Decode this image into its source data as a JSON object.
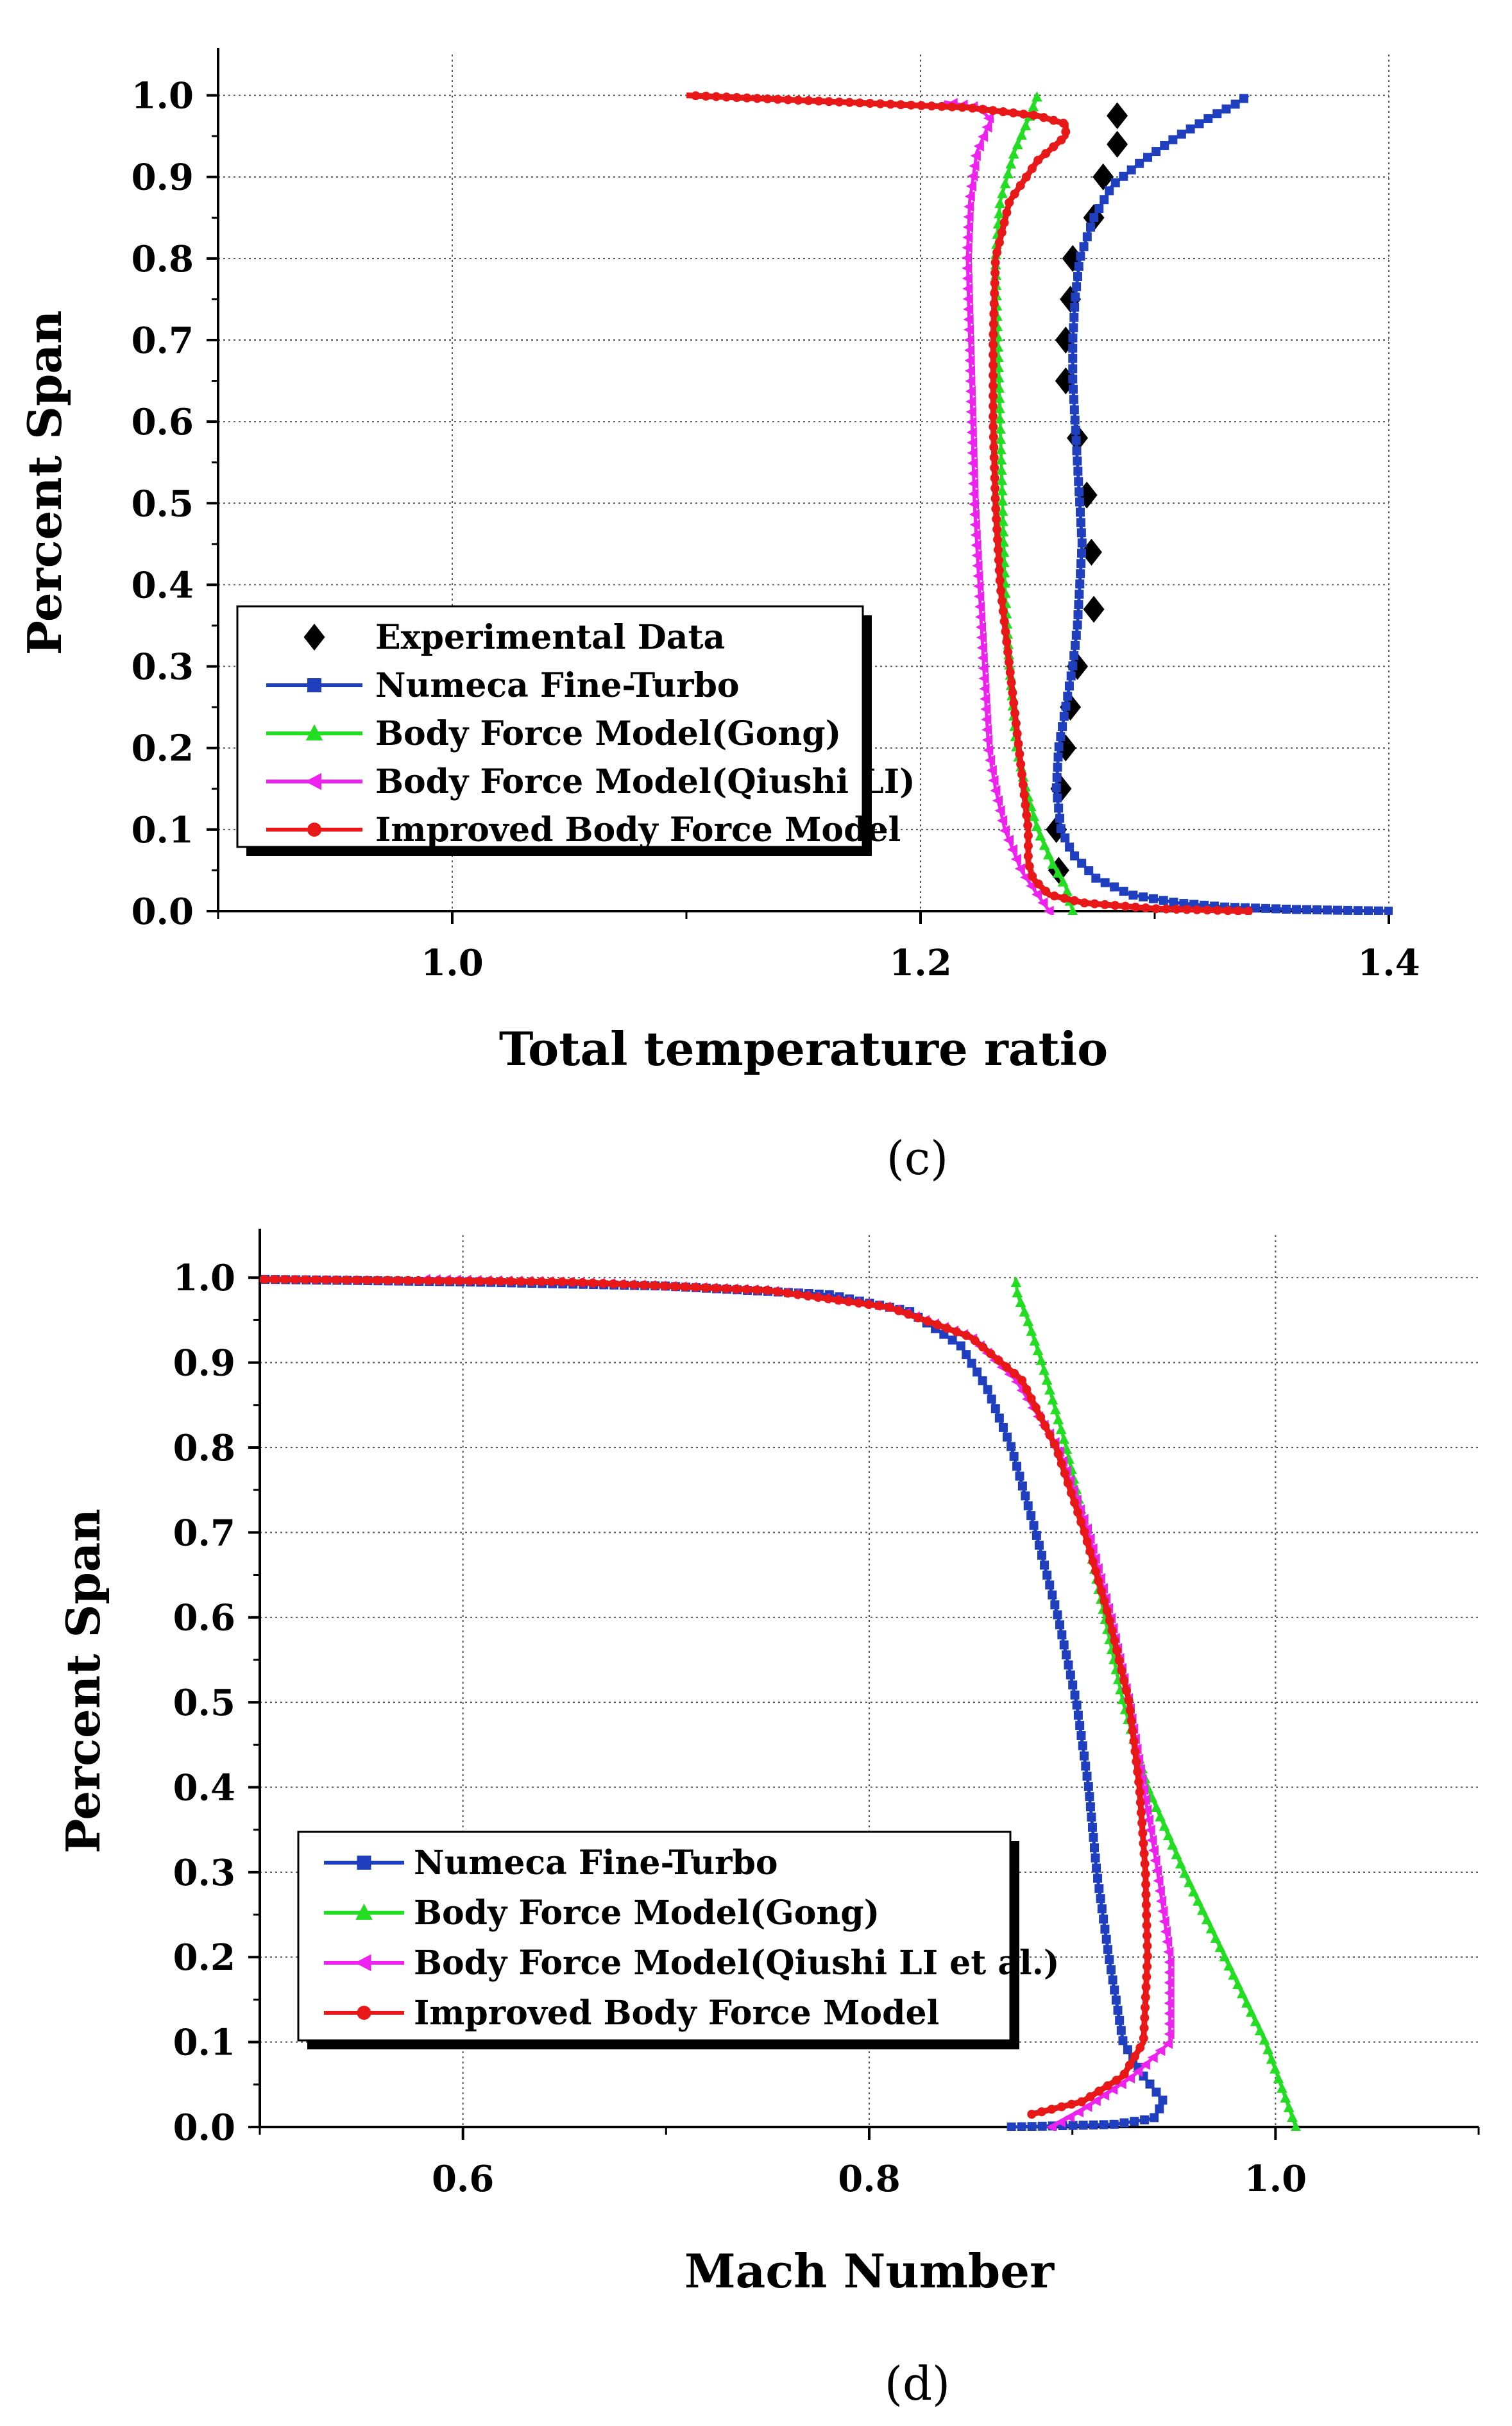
{
  "chart_data": [
    {
      "id": "c",
      "type": "line",
      "panel_label": "(c)",
      "xlabel": "Total temperature ratio",
      "ylabel": "Percent Span",
      "xlim": [
        0.9,
        1.4
      ],
      "ylim": [
        0.0,
        1.05
      ],
      "xticks": [
        1.0,
        1.2,
        1.4
      ],
      "xtick_labels": [
        "1.0",
        "1.2",
        "1.4"
      ],
      "yticks": [
        0.0,
        0.1,
        0.2,
        0.3,
        0.4,
        0.5,
        0.6,
        0.7,
        0.8,
        0.9,
        1.0
      ],
      "ytick_labels": [
        "0.0",
        "0.1",
        "0.2",
        "0.3",
        "0.4",
        "0.5",
        "0.6",
        "0.7",
        "0.8",
        "0.9",
        "1.0"
      ],
      "grid": true,
      "legend_position": "lower-left",
      "series": [
        {
          "name": "Experimental Data",
          "color": "#000000",
          "marker": "diamond",
          "line": false,
          "points": [
            [
              1.259,
              0.05
            ],
            [
              1.258,
              0.1
            ],
            [
              1.26,
              0.15
            ],
            [
              1.262,
              0.2
            ],
            [
              1.264,
              0.25
            ],
            [
              1.267,
              0.3
            ],
            [
              1.274,
              0.37
            ],
            [
              1.273,
              0.44
            ],
            [
              1.271,
              0.51
            ],
            [
              1.267,
              0.58
            ],
            [
              1.262,
              0.65
            ],
            [
              1.262,
              0.7
            ],
            [
              1.264,
              0.75
            ],
            [
              1.265,
              0.8
            ],
            [
              1.274,
              0.85
            ],
            [
              1.278,
              0.9
            ],
            [
              1.284,
              0.94
            ],
            [
              1.284,
              0.975
            ]
          ]
        },
        {
          "name": "Numeca Fine-Turbo",
          "color": "#1f3fbf",
          "marker": "square",
          "line": true,
          "points": [
            [
              1.4,
              0.0
            ],
            [
              1.36,
              0.002
            ],
            [
              1.33,
              0.005
            ],
            [
              1.31,
              0.01
            ],
            [
              1.29,
              0.02
            ],
            [
              1.275,
              0.04
            ],
            [
              1.265,
              0.07
            ],
            [
              1.26,
              0.1
            ],
            [
              1.258,
              0.15
            ],
            [
              1.259,
              0.2
            ],
            [
              1.262,
              0.25
            ],
            [
              1.265,
              0.3
            ],
            [
              1.267,
              0.35
            ],
            [
              1.268,
              0.4
            ],
            [
              1.269,
              0.45
            ],
            [
              1.268,
              0.5
            ],
            [
              1.267,
              0.55
            ],
            [
              1.266,
              0.6
            ],
            [
              1.265,
              0.65
            ],
            [
              1.265,
              0.7
            ],
            [
              1.266,
              0.75
            ],
            [
              1.268,
              0.8
            ],
            [
              1.274,
              0.85
            ],
            [
              1.282,
              0.89
            ],
            [
              1.295,
              0.92
            ],
            [
              1.31,
              0.95
            ],
            [
              1.325,
              0.975
            ],
            [
              1.335,
              0.99
            ],
            [
              1.34,
              1.0
            ]
          ]
        },
        {
          "name": "Body Force Model(Gong)",
          "color": "#22dd22",
          "marker": "triangle",
          "line": true,
          "points": [
            [
              1.265,
              0.0
            ],
            [
              1.262,
              0.03
            ],
            [
              1.256,
              0.06
            ],
            [
              1.25,
              0.1
            ],
            [
              1.245,
              0.15
            ],
            [
              1.241,
              0.2
            ],
            [
              1.238,
              0.3
            ],
            [
              1.236,
              0.4
            ],
            [
              1.235,
              0.5
            ],
            [
              1.234,
              0.6
            ],
            [
              1.233,
              0.7
            ],
            [
              1.232,
              0.8
            ],
            [
              1.234,
              0.87
            ],
            [
              1.24,
              0.93
            ],
            [
              1.246,
              0.97
            ],
            [
              1.25,
              1.0
            ]
          ]
        },
        {
          "name": "Body Force Model(Qiushi LI)",
          "color": "#ee22ee",
          "marker": "triangle-left",
          "line": true,
          "points": [
            [
              1.255,
              0.0
            ],
            [
              1.25,
              0.02
            ],
            [
              1.243,
              0.05
            ],
            [
              1.236,
              0.1
            ],
            [
              1.232,
              0.15
            ],
            [
              1.229,
              0.2
            ],
            [
              1.227,
              0.3
            ],
            [
              1.225,
              0.4
            ],
            [
              1.223,
              0.5
            ],
            [
              1.222,
              0.6
            ],
            [
              1.221,
              0.7
            ],
            [
              1.22,
              0.8
            ],
            [
              1.221,
              0.87
            ],
            [
              1.224,
              0.93
            ],
            [
              1.23,
              0.97
            ],
            [
              1.225,
              0.985
            ],
            [
              1.21,
              0.992
            ]
          ]
        },
        {
          "name": "Improved Body Force Model",
          "color": "#e81818",
          "marker": "circle",
          "line": true,
          "points": [
            [
              1.34,
              0.0
            ],
            [
              1.3,
              0.003
            ],
            [
              1.27,
              0.01
            ],
            [
              1.255,
              0.02
            ],
            [
              1.248,
              0.04
            ],
            [
              1.246,
              0.06
            ],
            [
              1.246,
              0.1
            ],
            [
              1.244,
              0.15
            ],
            [
              1.242,
              0.2
            ],
            [
              1.238,
              0.3
            ],
            [
              1.234,
              0.4
            ],
            [
              1.232,
              0.5
            ],
            [
              1.231,
              0.6
            ],
            [
              1.231,
              0.7
            ],
            [
              1.232,
              0.8
            ],
            [
              1.238,
              0.87
            ],
            [
              1.25,
              0.92
            ],
            [
              1.262,
              0.95
            ],
            [
              1.262,
              0.965
            ],
            [
              1.25,
              0.975
            ],
            [
              1.22,
              0.985
            ],
            [
              1.18,
              0.99
            ],
            [
              1.14,
              0.995
            ],
            [
              1.1,
              1.0
            ]
          ]
        }
      ]
    },
    {
      "id": "d",
      "type": "line",
      "panel_label": "(d)",
      "xlabel": "Mach Number",
      "ylabel": "Percent Span",
      "xlim": [
        0.5,
        1.1
      ],
      "ylim": [
        0.0,
        1.05
      ],
      "xticks": [
        0.6,
        0.8,
        1.0
      ],
      "xtick_labels": [
        "0.6",
        "0.8",
        "1.0"
      ],
      "yticks": [
        0.0,
        0.1,
        0.2,
        0.3,
        0.4,
        0.5,
        0.6,
        0.7,
        0.8,
        0.9,
        1.0
      ],
      "ytick_labels": [
        "0.0",
        "0.1",
        "0.2",
        "0.3",
        "0.4",
        "0.5",
        "0.6",
        "0.7",
        "0.8",
        "0.9",
        "1.0"
      ],
      "grid": true,
      "legend_position": "lower-left",
      "series": [
        {
          "name": "Numeca Fine-Turbo",
          "color": "#1f3fbf",
          "marker": "square",
          "line": true,
          "points": [
            [
              0.87,
              0.0
            ],
            [
              0.92,
              0.003
            ],
            [
              0.94,
              0.01
            ],
            [
              0.945,
              0.03
            ],
            [
              0.935,
              0.06
            ],
            [
              0.925,
              0.1
            ],
            [
              0.918,
              0.2
            ],
            [
              0.912,
              0.3
            ],
            [
              0.908,
              0.4
            ],
            [
              0.902,
              0.5
            ],
            [
              0.893,
              0.6
            ],
            [
              0.882,
              0.7
            ],
            [
              0.87,
              0.8
            ],
            [
              0.858,
              0.87
            ],
            [
              0.845,
              0.92
            ],
            [
              0.82,
              0.96
            ],
            [
              0.78,
              0.98
            ],
            [
              0.7,
              0.99
            ],
            [
              0.6,
              0.995
            ],
            [
              0.5,
              0.998
            ]
          ]
        },
        {
          "name": "Body Force Model(Gong)",
          "color": "#22dd22",
          "marker": "triangle",
          "line": true,
          "points": [
            [
              1.01,
              0.0
            ],
            [
              0.995,
              0.1
            ],
            [
              0.975,
              0.2
            ],
            [
              0.955,
              0.3
            ],
            [
              0.937,
              0.4
            ],
            [
              0.925,
              0.5
            ],
            [
              0.916,
              0.6
            ],
            [
              0.907,
              0.7
            ],
            [
              0.897,
              0.8
            ],
            [
              0.885,
              0.9
            ],
            [
              0.878,
              0.95
            ],
            [
              0.873,
              0.98
            ],
            [
              0.872,
              1.0
            ]
          ]
        },
        {
          "name": "Body Force Model(Qiushi LI et al.)",
          "color": "#ee22ee",
          "marker": "triangle-left",
          "line": true,
          "points": [
            [
              0.89,
              0.0
            ],
            [
              0.905,
              0.02
            ],
            [
              0.93,
              0.06
            ],
            [
              0.948,
              0.1
            ],
            [
              0.948,
              0.2
            ],
            [
              0.942,
              0.3
            ],
            [
              0.935,
              0.4
            ],
            [
              0.928,
              0.5
            ],
            [
              0.919,
              0.6
            ],
            [
              0.908,
              0.7
            ],
            [
              0.893,
              0.8
            ],
            [
              0.872,
              0.88
            ],
            [
              0.85,
              0.93
            ],
            [
              0.81,
              0.965
            ],
            [
              0.75,
              0.985
            ],
            [
              0.65,
              0.995
            ],
            [
              0.58,
              0.998
            ]
          ]
        },
        {
          "name": "Improved Body Force Model",
          "color": "#e81818",
          "marker": "circle",
          "line": true,
          "points": [
            [
              0.88,
              0.015
            ],
            [
              0.905,
              0.03
            ],
            [
              0.925,
              0.06
            ],
            [
              0.935,
              0.1
            ],
            [
              0.937,
              0.2
            ],
            [
              0.936,
              0.3
            ],
            [
              0.933,
              0.4
            ],
            [
              0.928,
              0.5
            ],
            [
              0.918,
              0.6
            ],
            [
              0.906,
              0.7
            ],
            [
              0.892,
              0.8
            ],
            [
              0.875,
              0.88
            ],
            [
              0.85,
              0.93
            ],
            [
              0.81,
              0.965
            ],
            [
              0.75,
              0.985
            ],
            [
              0.65,
              0.995
            ],
            [
              0.5,
              0.998
            ]
          ]
        }
      ]
    }
  ]
}
